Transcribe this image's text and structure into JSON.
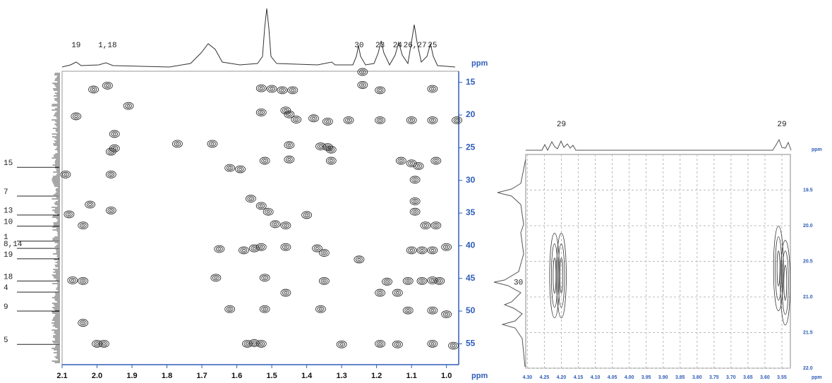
{
  "chart_data": [
    {
      "type": "contour",
      "xlim": [
        2.1,
        0.965
      ],
      "ylim": [
        13.3,
        58.2
      ],
      "xticks": [
        2.1,
        {
          "value": 2,
          "label": "2.0"
        },
        1.9,
        1.8,
        1.7,
        1.6,
        1.5,
        1.4,
        1.3,
        1.2,
        1.1,
        {
          "value": 1,
          "label": "1.0"
        }
      ],
      "yticks": [
        15,
        20,
        25,
        30,
        35,
        40,
        45,
        50,
        55
      ],
      "x_label": "ppm",
      "y_label": "ppm",
      "grid": false,
      "color": "#1a1a1a",
      "peaks": {
        "x": [
          2.01,
          1.97,
          1.24,
          1.24,
          1.19,
          1.53,
          1.5,
          1.47,
          1.44,
          1.04,
          2.06,
          1.91,
          1.53,
          1.46,
          1.45,
          1.43,
          1.38,
          1.34,
          1.28,
          1.19,
          1.1,
          1.04,
          0.97,
          1.95,
          1.95,
          1.96,
          1.77,
          1.67,
          1.45,
          1.36,
          1.34,
          1.33,
          1.52,
          1.45,
          1.33,
          1.13,
          1.1,
          1.08,
          1.03,
          1.62,
          1.59,
          2.09,
          1.96,
          1.09,
          1.09,
          1.09,
          1.06,
          1.03,
          2.02,
          1.96,
          2.08,
          2.04,
          1.56,
          1.53,
          1.51,
          1.46,
          1.49,
          1.4,
          1.65,
          1.58,
          1.55,
          1.53,
          1.46,
          1.37,
          1.35,
          1.1,
          1.07,
          1.04,
          1.0,
          1.25,
          2.07,
          2.04,
          1.66,
          1.52,
          1.35,
          1.17,
          1.11,
          1.07,
          1.04,
          1.02,
          1.19,
          1.14,
          1.46,
          1.62,
          1.52,
          1.36,
          1.11,
          1.04,
          1.0,
          2.04,
          2.0,
          1.98,
          1.57,
          1.55,
          1.53,
          1.3,
          1.19,
          1.14,
          1.04,
          0.98
        ],
        "y": [
          16.1,
          15.5,
          13.4,
          15.4,
          16.2,
          15.9,
          16.0,
          16.2,
          16.2,
          16.0,
          20.2,
          18.6,
          19.6,
          19.3,
          19.9,
          20.7,
          20.5,
          21.0,
          20.8,
          20.8,
          20.8,
          20.8,
          20.8,
          22.9,
          25.1,
          25.6,
          24.4,
          24.4,
          24.6,
          24.8,
          24.9,
          25.3,
          27.0,
          26.8,
          27.0,
          27.0,
          27.4,
          27.8,
          27.0,
          28.1,
          28.3,
          29.1,
          29.1,
          29.9,
          33.2,
          34.8,
          36.9,
          36.9,
          33.7,
          34.6,
          35.2,
          36.9,
          32.8,
          33.9,
          34.8,
          36.9,
          36.7,
          35.3,
          40.5,
          40.7,
          40.4,
          40.2,
          40.2,
          40.4,
          41.1,
          40.7,
          40.7,
          40.7,
          40.2,
          42.1,
          45.3,
          45.4,
          44.9,
          44.9,
          45.4,
          45.5,
          45.4,
          45.4,
          45.3,
          45.4,
          47.2,
          47.2,
          47.2,
          49.7,
          49.7,
          49.7,
          49.9,
          49.9,
          50.5,
          51.8,
          55.0,
          55.0,
          55.0,
          54.9,
          55.0,
          55.1,
          55.0,
          55.1,
          55.0,
          55.3
        ]
      },
      "top_labels": [
        {
          "text": "19",
          "x": 2.06
        },
        {
          "text": "1,18",
          "x": 1.97
        },
        {
          "text": "30",
          "x": 1.25
        },
        {
          "text": "23",
          "x": 1.19
        },
        {
          "text": "24",
          "x": 1.14
        },
        {
          "text": "26,27",
          "x": 1.09
        },
        {
          "text": "25",
          "x": 1.04
        }
      ],
      "side_labels": [
        {
          "text": "15",
          "y": 28.0
        },
        {
          "text": "7",
          "y": 32.4
        },
        {
          "text": "13",
          "y": 35.3
        },
        {
          "text": "10",
          "y": 37.0
        },
        {
          "text": "1",
          "y": 39.3
        },
        {
          "text": "8,14",
          "y": 40.4
        },
        {
          "text": "19",
          "y": 42.0
        },
        {
          "text": "18",
          "y": 45.4
        },
        {
          "text": "4",
          "y": 47.1
        },
        {
          "text": "9",
          "y": 50.0
        },
        {
          "text": "5",
          "y": 55.1
        }
      ]
    },
    {
      "type": "contour",
      "xlim": [
        4.305,
        3.525
      ],
      "ylim": [
        19.0,
        22.0
      ],
      "xticks": [
        {
          "value": 4.3,
          "label": "4.30"
        },
        4.25,
        {
          "value": 4.2,
          "label": "4.20"
        },
        4.15,
        {
          "value": 4.1,
          "label": "4.10"
        },
        4.05,
        {
          "value": 4,
          "label": "4.00"
        },
        3.95,
        {
          "value": 3.9,
          "label": "3.90"
        },
        3.85,
        {
          "value": 3.8,
          "label": "3.80"
        },
        3.75,
        {
          "value": 3.7,
          "label": "3.70"
        },
        3.65,
        {
          "value": 3.6,
          "label": "3.60"
        },
        3.55
      ],
      "yticks": [
        19.5,
        {
          "value": 20,
          "label": "20.0"
        },
        20.5,
        {
          "value": 21,
          "label": "21.0"
        },
        21.5,
        {
          "value": 22,
          "label": "22.0"
        }
      ],
      "x_label": "ppm",
      "y_label": "ppm",
      "grid": true,
      "color": "#333333",
      "peaks": {
        "x": [
          4.22,
          4.2,
          3.56,
          3.54
        ],
        "y": [
          20.7,
          20.7,
          20.6,
          20.8
        ]
      },
      "top_labels": [
        {
          "text": "29",
          "x": 4.2
        },
        {
          "text": "29",
          "x": 3.55
        }
      ],
      "side_labels": [
        {
          "text": "30",
          "y": 20.8
        }
      ]
    }
  ]
}
